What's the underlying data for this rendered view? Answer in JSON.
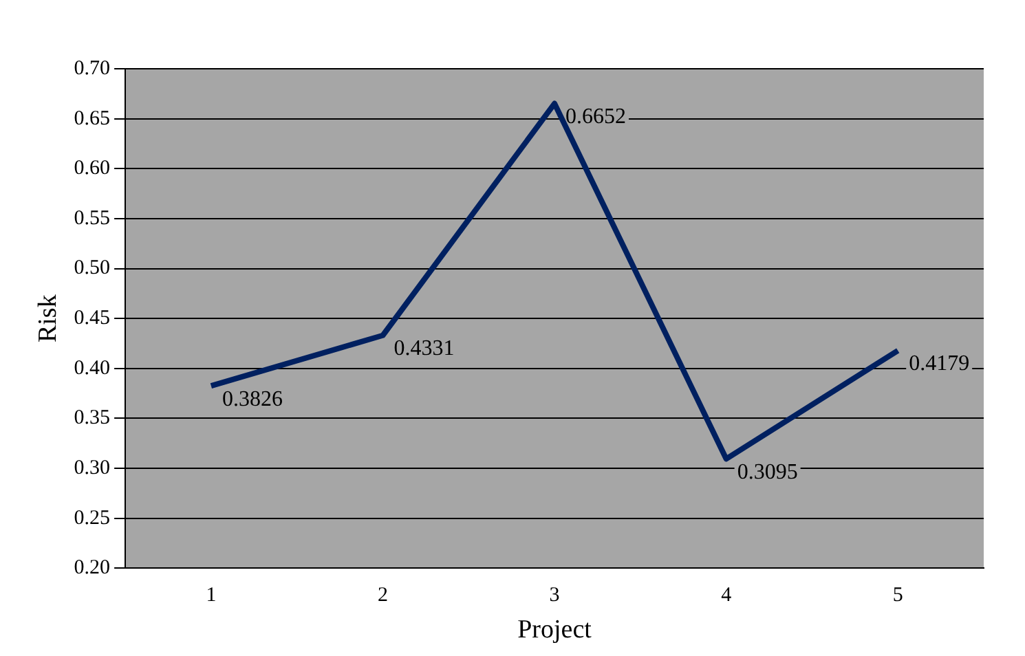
{
  "chart_data": {
    "type": "line",
    "xlabel": "Project",
    "ylabel": "Risk",
    "categories": [
      "1",
      "2",
      "3",
      "4",
      "5"
    ],
    "series": [
      {
        "color": "#002060",
        "values": [
          0.3826,
          0.4331,
          0.6652,
          0.3095,
          0.4179
        ]
      }
    ],
    "ylim": [
      0.2,
      0.7
    ],
    "yticks": [
      {
        "value": 0.2,
        "label": "0.20"
      },
      {
        "value": 0.25,
        "label": "0.25"
      },
      {
        "value": 0.3,
        "label": "0.30"
      },
      {
        "value": 0.35,
        "label": "0.35"
      },
      {
        "value": 0.4,
        "label": "0.40"
      },
      {
        "value": 0.45,
        "label": "0.45"
      },
      {
        "value": 0.5,
        "label": "0.50"
      },
      {
        "value": 0.55,
        "label": "0.55"
      },
      {
        "value": 0.6,
        "label": "0.60"
      },
      {
        "value": 0.65,
        "label": "0.65"
      },
      {
        "value": 0.7,
        "label": "0.70"
      }
    ],
    "grid": "y",
    "legend": false,
    "marker": "none",
    "line_style": "solid",
    "data_labels": true
  }
}
